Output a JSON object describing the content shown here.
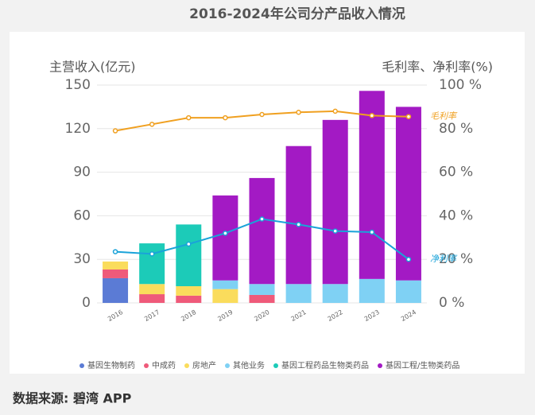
{
  "chart_data": {
    "type": "bar",
    "title": "2016-2024年公司分产品收入情况",
    "y_label": "主营收入(亿元)",
    "y2_label": "毛利率、净利率(%)",
    "source": "数据来源: 碧湾 APP",
    "categories": [
      "2016",
      "2017",
      "2018",
      "2019",
      "2020",
      "2021",
      "2022",
      "2023",
      "2024"
    ],
    "ylim": [
      0,
      150
    ],
    "yticks": [
      0,
      30,
      60,
      90,
      120,
      150
    ],
    "y2lim": [
      0,
      100
    ],
    "y2ticks": [
      {
        "value": 0,
        "label": "0 %"
      },
      {
        "value": 20,
        "label": "20 %"
      },
      {
        "value": 40,
        "label": "40 %"
      },
      {
        "value": 60,
        "label": "60 %"
      },
      {
        "value": 80,
        "label": "80 %"
      },
      {
        "value": 100,
        "label": "100 %"
      }
    ],
    "grid": true,
    "series": [
      {
        "name": "基因生物制药",
        "color": "#5b7bd5",
        "values": [
          17,
          0,
          0,
          0,
          0,
          0,
          0,
          0,
          0
        ]
      },
      {
        "name": "中成药",
        "color": "#ef5a7a",
        "values": [
          6,
          6,
          5,
          0,
          5.5,
          0,
          0,
          0,
          0
        ]
      },
      {
        "name": "房地产",
        "color": "#fadc5c",
        "values": [
          5.5,
          7,
          6.5,
          9.5,
          0,
          0,
          0,
          0,
          0
        ]
      },
      {
        "name": "其他业务",
        "color": "#7fd1f4",
        "values": [
          0,
          0,
          0,
          6,
          7.5,
          13,
          13,
          16.5,
          15.5
        ]
      },
      {
        "name": "基因工程药品生物类药品",
        "color": "#1ccbb8",
        "values": [
          0,
          28,
          42.5,
          0,
          0,
          0,
          0,
          0,
          0
        ]
      },
      {
        "name": "基因工程/生物类药品",
        "color": "#a31ac4",
        "values": [
          0,
          0,
          0,
          58.5,
          73,
          95,
          113,
          129.5,
          119.5
        ]
      },
      {
        "name": "毛利率",
        "type": "line",
        "axis": "y2",
        "color": "#f0a020",
        "values": [
          79,
          82,
          85,
          85,
          86.5,
          87.5,
          88,
          86,
          85.5
        ]
      },
      {
        "name": "净利率",
        "type": "line",
        "axis": "y2",
        "color": "#1aa3d9",
        "values": [
          23.5,
          22.5,
          27,
          32,
          38.5,
          36,
          33,
          32.5,
          20
        ]
      }
    ]
  }
}
